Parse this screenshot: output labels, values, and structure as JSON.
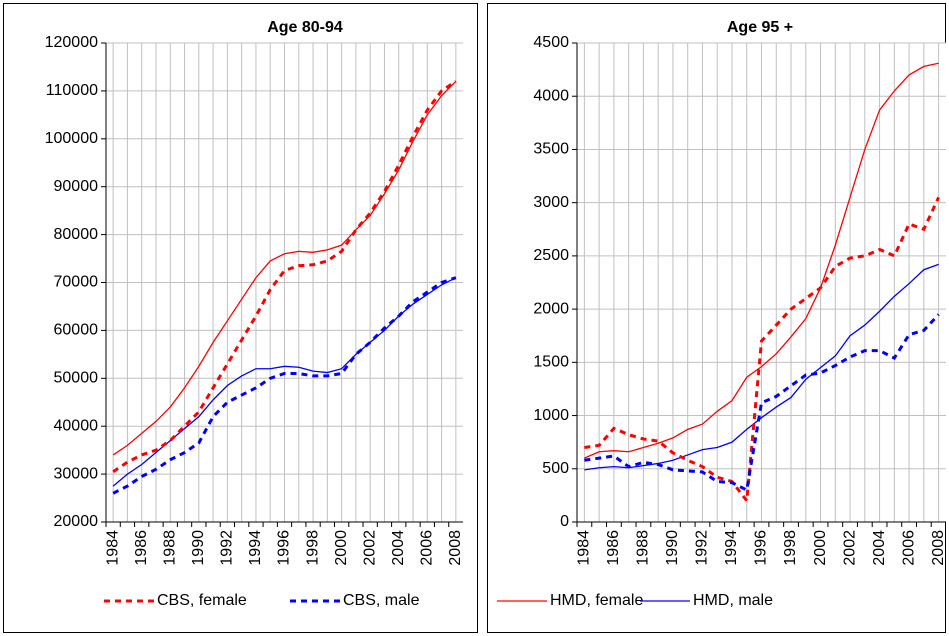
{
  "chart_data": [
    {
      "type": "line",
      "title": "Age 80-94",
      "categories": [
        "1984",
        null,
        "1986",
        null,
        "1988",
        null,
        "1990",
        null,
        "1992",
        null,
        "1994",
        null,
        "1996",
        null,
        "1998",
        null,
        "2000",
        null,
        "2002",
        null,
        "2004",
        null,
        "2006",
        null,
        "2008"
      ],
      "ylim": [
        20000,
        120000
      ],
      "yticks": [
        20000,
        30000,
        40000,
        50000,
        60000,
        70000,
        80000,
        90000,
        100000,
        110000,
        120000
      ],
      "grid": true,
      "series": [
        {
          "color": "#ff0000",
          "dashed": false,
          "values": [
            34000,
            36000,
            38500,
            41000,
            44000,
            48000,
            52500,
            57500,
            62000,
            66500,
            71000,
            74500,
            76000,
            76500,
            76300,
            76800,
            77800,
            81000,
            84000,
            88500,
            93500,
            99500,
            105000,
            109000,
            112000
          ]
        },
        {
          "color": "#0000ff",
          "dashed": false,
          "values": [
            27500,
            30000,
            32000,
            34500,
            37000,
            39500,
            42000,
            45500,
            48500,
            50500,
            52000,
            52000,
            52500,
            52300,
            51500,
            51200,
            52000,
            55000,
            57500,
            60000,
            63000,
            65500,
            67500,
            69500,
            71000
          ]
        },
        {
          "name": "CBS, female",
          "color": "#ff0000",
          "dashed": true,
          "values": [
            30500,
            32500,
            34000,
            35000,
            37000,
            40000,
            43000,
            48000,
            53000,
            58000,
            63000,
            68500,
            72500,
            73500,
            73700,
            74500,
            76500,
            81000,
            84500,
            89000,
            94500,
            100500,
            106000,
            110000,
            112000
          ]
        },
        {
          "name": "CBS, male",
          "color": "#0000ff",
          "dashed": true,
          "values": [
            26000,
            27500,
            29500,
            31000,
            33000,
            34500,
            36500,
            42000,
            45000,
            46500,
            48000,
            50000,
            51000,
            51000,
            50500,
            50500,
            51000,
            55000,
            57500,
            60500,
            63000,
            66000,
            68000,
            70000,
            71000
          ]
        }
      ]
    },
    {
      "type": "line",
      "title": "Age 95 +",
      "categories": [
        "1984",
        null,
        "1986",
        null,
        "1988",
        null,
        "1990",
        null,
        "1992",
        null,
        "1994",
        null,
        "1996",
        null,
        "1998",
        null,
        "2000",
        null,
        "2002",
        null,
        "2004",
        null,
        "2006",
        null,
        "2008"
      ],
      "ylim": [
        0,
        4500
      ],
      "yticks": [
        0,
        500,
        1000,
        1500,
        2000,
        2500,
        3000,
        3500,
        4000,
        4500
      ],
      "grid": true,
      "series": [
        {
          "name": "HMD, female",
          "color": "#ff0000",
          "dashed": false,
          "values": [
            600,
            660,
            670,
            660,
            700,
            740,
            790,
            870,
            920,
            1040,
            1140,
            1360,
            1460,
            1580,
            1740,
            1910,
            2200,
            2600,
            3050,
            3500,
            3870,
            4050,
            4200,
            4280,
            4310
          ]
        },
        {
          "name": "HMD, male",
          "color": "#0000ff",
          "dashed": false,
          "values": [
            490,
            510,
            520,
            510,
            530,
            550,
            580,
            630,
            680,
            700,
            750,
            870,
            980,
            1080,
            1170,
            1340,
            1450,
            1560,
            1750,
            1850,
            1980,
            2120,
            2240,
            2370,
            2420
          ]
        },
        {
          "color": "#ff0000",
          "dashed": true,
          "values": [
            700,
            720,
            880,
            820,
            780,
            760,
            650,
            580,
            520,
            420,
            380,
            200,
            1700,
            1850,
            2000,
            2100,
            2200,
            2400,
            2480,
            2500,
            2560,
            2500,
            2800,
            2750,
            3050
          ]
        },
        {
          "color": "#0000ff",
          "dashed": true,
          "values": [
            580,
            600,
            620,
            520,
            560,
            540,
            490,
            480,
            470,
            380,
            370,
            300,
            1120,
            1180,
            1280,
            1380,
            1400,
            1470,
            1550,
            1610,
            1610,
            1540,
            1760,
            1800,
            1950
          ]
        }
      ]
    }
  ]
}
